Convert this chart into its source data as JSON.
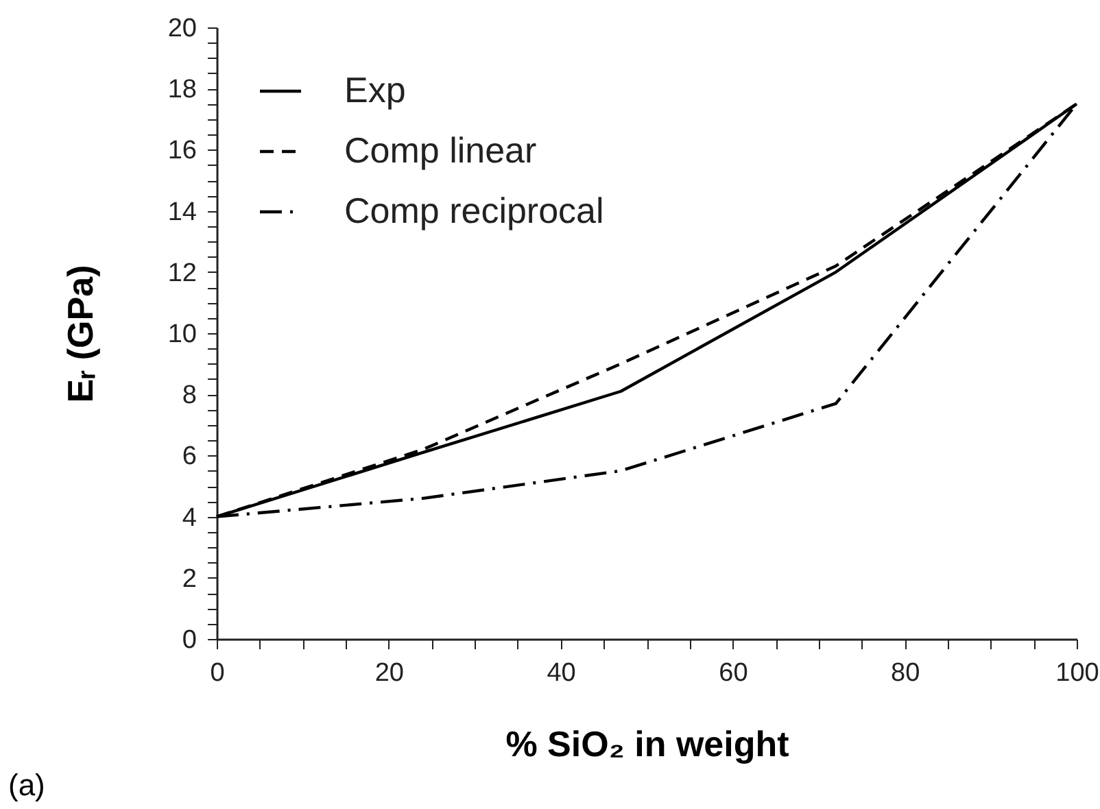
{
  "chart_data": {
    "type": "line",
    "xlabel": "% SiO₂ in weight",
    "ylabel": "Eᵣ (GPa)",
    "annotations": [
      "(a)"
    ],
    "x": [
      0,
      24,
      47,
      72,
      100
    ],
    "series": [
      {
        "name": "Exp",
        "color": "#000000",
        "line_style": "solid",
        "values": [
          4,
          6.1,
          8.1,
          12,
          17.5
        ]
      },
      {
        "name": "Comp linear",
        "color": "#000000",
        "line_style": "dashed",
        "values": [
          4,
          6.2,
          9,
          12.2,
          17.5
        ]
      },
      {
        "name": "Comp reciprocal",
        "color": "#000000",
        "line_style": "dashdot",
        "values": [
          4,
          4.6,
          5.5,
          7.7,
          17.5
        ]
      }
    ],
    "xlim": [
      0,
      100
    ],
    "xticks": [
      0,
      {
        "value": 5,
        "label": null
      },
      {
        "value": 10,
        "label": null
      },
      {
        "value": 15,
        "label": null
      },
      20,
      {
        "value": 25,
        "label": null
      },
      {
        "value": 30,
        "label": null
      },
      {
        "value": 35,
        "label": null
      },
      40,
      {
        "value": 45,
        "label": null
      },
      {
        "value": 50,
        "label": null
      },
      {
        "value": 55,
        "label": null
      },
      60,
      {
        "value": 65,
        "label": null
      },
      {
        "value": 70,
        "label": null
      },
      {
        "value": 75,
        "label": null
      },
      80,
      {
        "value": 85,
        "label": null
      },
      {
        "value": 90,
        "label": null
      },
      {
        "value": 95,
        "label": null
      },
      100
    ],
    "ylim": [
      0,
      20
    ],
    "yticks": [
      0,
      {
        "value": 0.5,
        "label": null
      },
      {
        "value": 1,
        "label": null
      },
      {
        "value": 1.5,
        "label": null
      },
      2,
      {
        "value": 2.5,
        "label": null
      },
      {
        "value": 3,
        "label": null
      },
      {
        "value": 3.5,
        "label": null
      },
      4,
      {
        "value": 4.5,
        "label": null
      },
      {
        "value": 5,
        "label": null
      },
      {
        "value": 5.5,
        "label": null
      },
      6,
      {
        "value": 6.5,
        "label": null
      },
      {
        "value": 7,
        "label": null
      },
      {
        "value": 7.5,
        "label": null
      },
      8,
      {
        "value": 8.5,
        "label": null
      },
      {
        "value": 9,
        "label": null
      },
      {
        "value": 9.5,
        "label": null
      },
      10,
      {
        "value": 10.5,
        "label": null
      },
      {
        "value": 11,
        "label": null
      },
      {
        "value": 11.5,
        "label": null
      },
      12,
      {
        "value": 12.5,
        "label": null
      },
      {
        "value": 13,
        "label": null
      },
      {
        "value": 13.5,
        "label": null
      },
      14,
      {
        "value": 14.5,
        "label": null
      },
      {
        "value": 15,
        "label": null
      },
      {
        "value": 15.5,
        "label": null
      },
      16,
      {
        "value": 16.5,
        "label": null
      },
      {
        "value": 17,
        "label": null
      },
      {
        "value": 17.5,
        "label": null
      },
      18,
      {
        "value": 18.5,
        "label": null
      },
      {
        "value": 19,
        "label": null
      },
      {
        "value": 19.5,
        "label": null
      },
      20
    ],
    "grid": false,
    "legend": "top left",
    "marker": "none"
  }
}
